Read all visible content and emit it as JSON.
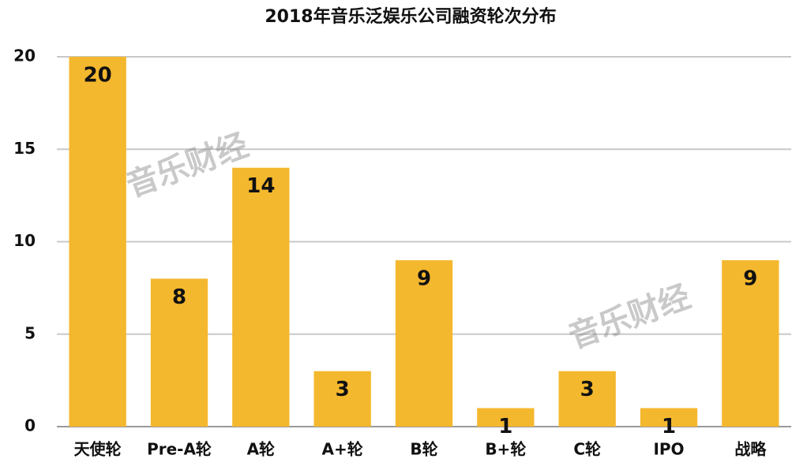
{
  "chart_data": {
    "type": "bar",
    "title": "2018年音乐泛娱乐公司融资轮次分布",
    "categories": [
      "天使轮",
      "Pre-A轮",
      "A轮",
      "A+轮",
      "B轮",
      "B+轮",
      "C轮",
      "IPO",
      "战略"
    ],
    "values": [
      20,
      8,
      14,
      3,
      9,
      1,
      3,
      1,
      9
    ],
    "color": "#f4b82e",
    "ylim": [
      0,
      20
    ],
    "yticks": [
      0,
      5,
      10,
      15,
      20
    ],
    "grid": true,
    "watermark": "音乐财经"
  }
}
